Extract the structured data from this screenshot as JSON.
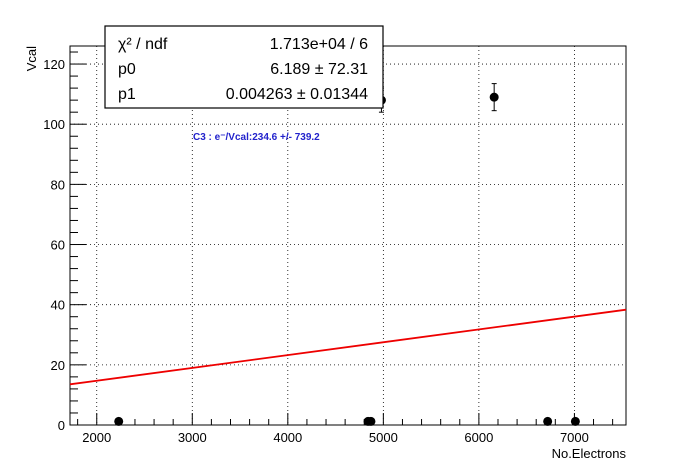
{
  "chart_data": {
    "type": "scatter",
    "xlabel": "No.Electrons",
    "ylabel": "Vcal",
    "xlim": [
      1720,
      7540
    ],
    "ylim": [
      0,
      126
    ],
    "x_ticks": [
      2000,
      3000,
      4000,
      5000,
      6000,
      7000
    ],
    "y_ticks": [
      0,
      20,
      40,
      60,
      80,
      100,
      120
    ],
    "x_tick_labels": [
      "2000",
      "3000",
      "4000",
      "5000",
      "6000",
      "7000"
    ],
    "y_tick_labels": [
      "0",
      "20",
      "40",
      "60",
      "80",
      "100",
      "120"
    ],
    "grid": true,
    "points": [
      {
        "x": 2230,
        "y": 1.2,
        "yerr": 0
      },
      {
        "x": 4840,
        "y": 1.2,
        "yerr": 0
      },
      {
        "x": 4870,
        "y": 1.2,
        "yerr": 0
      },
      {
        "x": 4980,
        "y": 108,
        "yerr": 4
      },
      {
        "x": 6160,
        "y": 109,
        "yerr": 4.5
      },
      {
        "x": 6720,
        "y": 1.2,
        "yerr": 0
      },
      {
        "x": 7010,
        "y": 1.2,
        "yerr": 0
      }
    ],
    "fit": {
      "p0": 6.189,
      "p1": 0.004263,
      "color": "#ee0000"
    },
    "stats_box": {
      "rows": [
        {
          "label": "χ² / ndf",
          "value": "1.713e+04 / 6"
        },
        {
          "label": "p0",
          "value": "6.189 ± 72.31"
        },
        {
          "label": "p1",
          "value": "0.004263 ± 0.01344"
        }
      ]
    },
    "annotation": "C3 : e⁻/Vcal:234.6 +/- 739.2",
    "annotation_color": "#2222cc"
  }
}
